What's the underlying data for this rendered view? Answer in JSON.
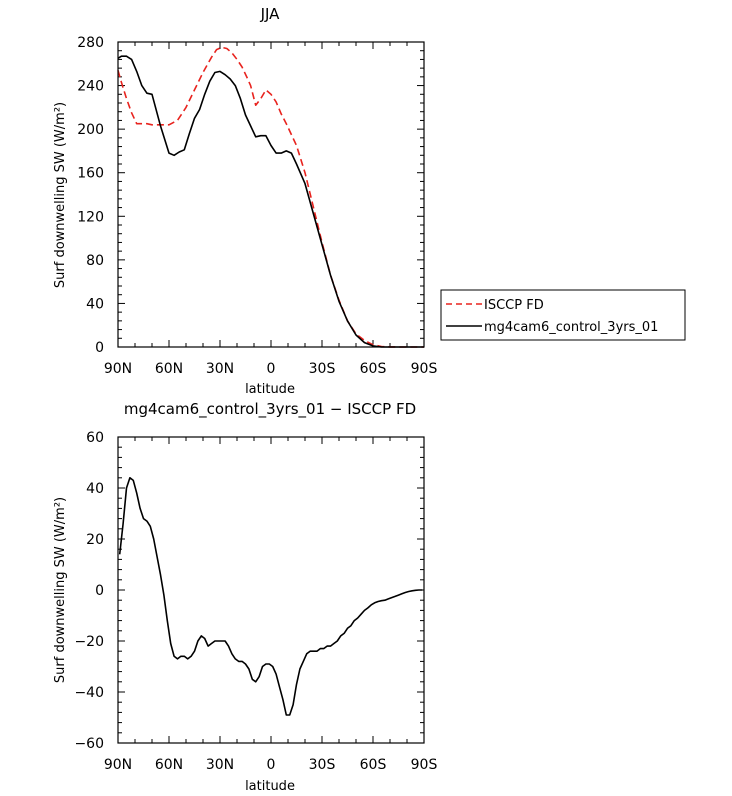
{
  "chart_data": [
    {
      "type": "line",
      "title": "JJA",
      "xlabel": "latitude",
      "ylabel": "Surf downwelling SW (W/m²)",
      "xlim": [
        90,
        -90
      ],
      "ylim": [
        0,
        280
      ],
      "xticks": [
        90,
        60,
        30,
        0,
        -30,
        -60,
        -90
      ],
      "xticklabels": [
        "90N",
        "60N",
        "30N",
        "0",
        "30S",
        "60S",
        "90S"
      ],
      "yticks": [
        0,
        40,
        80,
        120,
        160,
        200,
        240,
        280
      ],
      "yticklabels": [
        "0",
        "40",
        "80",
        "120",
        "160",
        "200",
        "240",
        "280"
      ],
      "legend_position": "right",
      "series": [
        {
          "name": "ISCCP FD",
          "color": "#e8231e",
          "dash": "dashed",
          "x": [
            90,
            88,
            85,
            82,
            79,
            76,
            73,
            70,
            65,
            60,
            55,
            50,
            45,
            40,
            35,
            32,
            29,
            26,
            23,
            20,
            17,
            14,
            12,
            9,
            6,
            3,
            0,
            -3,
            -6,
            -9,
            -12,
            -15,
            -20,
            -25,
            -30,
            -35,
            -40,
            -45,
            -50,
            -55,
            -60,
            -65,
            -70,
            -75,
            -80,
            -85,
            -90
          ],
          "y": [
            254,
            243,
            228,
            215,
            205,
            205,
            205,
            204,
            204,
            204,
            208,
            220,
            236,
            252,
            266,
            273,
            275,
            274,
            270,
            264,
            257,
            247,
            240,
            222,
            228,
            236,
            232,
            225,
            214,
            205,
            195,
            185,
            160,
            128,
            96,
            66,
            43,
            24,
            12,
            6,
            2,
            0.5,
            0.1,
            0,
            0,
            0,
            0
          ]
        },
        {
          "name": "mg4cam6_control_3yrs_01",
          "color": "#000000",
          "dash": "solid",
          "x": [
            90,
            88,
            85,
            82,
            79,
            76,
            73,
            70,
            65,
            60,
            57,
            54,
            51,
            48,
            45,
            42,
            39,
            36,
            33,
            30,
            27,
            24,
            21,
            18,
            15,
            12,
            9,
            6,
            3,
            0,
            -3,
            -6,
            -9,
            -12,
            -15,
            -20,
            -25,
            -30,
            -35,
            -40,
            -45,
            -50,
            -55,
            -60,
            -65,
            -70,
            -75,
            -80,
            -85,
            -90
          ],
          "y": [
            265,
            267,
            267,
            264,
            253,
            240,
            233,
            232,
            203,
            178,
            176,
            179,
            181,
            196,
            210,
            218,
            232,
            244,
            252,
            253,
            250,
            246,
            240,
            228,
            213,
            203,
            193,
            194,
            194,
            185,
            178,
            178,
            180,
            178,
            168,
            150,
            122,
            94,
            66,
            42,
            24,
            11,
            4,
            1,
            0,
            0,
            0,
            0,
            0,
            0
          ]
        }
      ]
    },
    {
      "type": "line",
      "title": "mg4cam6_control_3yrs_01 − ISCCP FD",
      "xlabel": "latitude",
      "ylabel": "Surf downwelling SW (W/m²)",
      "xlim": [
        90,
        -90
      ],
      "ylim": [
        -60,
        60
      ],
      "xticks": [
        90,
        60,
        30,
        0,
        -30,
        -60,
        -90
      ],
      "xticklabels": [
        "90N",
        "60N",
        "30N",
        "0",
        "30S",
        "60S",
        "90S"
      ],
      "yticks": [
        -60,
        -40,
        -20,
        0,
        20,
        40,
        60
      ],
      "yticklabels": [
        "−60",
        "−40",
        "−20",
        "0",
        "20",
        "40",
        "60"
      ],
      "series": [
        {
          "color": "#000000",
          "dash": "solid",
          "x": [
            89,
            87,
            85,
            83,
            81,
            79,
            77,
            75,
            73,
            71,
            69,
            67,
            65,
            63,
            61,
            59,
            57,
            55,
            53,
            51,
            49,
            47,
            45,
            43,
            41,
            39,
            37,
            35,
            33,
            31,
            29,
            27,
            25,
            23,
            21,
            19,
            17,
            15,
            13,
            11,
            9,
            7,
            5,
            3,
            1,
            -1,
            -3,
            -5,
            -7,
            -9,
            -11,
            -13,
            -15,
            -17,
            -19,
            -21,
            -23,
            -25,
            -27,
            -29,
            -31,
            -33,
            -35,
            -37,
            -39,
            -41,
            -43,
            -45,
            -47,
            -49,
            -51,
            -53,
            -55,
            -57,
            -59,
            -61,
            -63,
            -65,
            -67,
            -69,
            -71,
            -73,
            -75,
            -77,
            -79,
            -81,
            -83,
            -85,
            -87,
            -89
          ],
          "y": [
            14,
            26,
            40,
            44,
            43,
            38,
            32,
            28,
            27,
            25,
            20,
            13,
            6,
            -2,
            -12,
            -21,
            -26,
            -27,
            -26,
            -26,
            -27,
            -26,
            -24,
            -20,
            -18,
            -19,
            -22,
            -21,
            -20,
            -20,
            -20,
            -20,
            -22,
            -25,
            -27,
            -28,
            -28,
            -29,
            -31,
            -35,
            -36,
            -34,
            -30,
            -29,
            -29,
            -30,
            -33,
            -38,
            -43,
            -49,
            -49,
            -45,
            -37,
            -31,
            -28,
            -25,
            -24,
            -24,
            -24,
            -23,
            -23,
            -22,
            -22,
            -21,
            -20,
            -18,
            -17,
            -15,
            -14,
            -12,
            -11,
            -9.5,
            -8,
            -7,
            -5.8,
            -5,
            -4.5,
            -4.2,
            -4,
            -3.5,
            -3,
            -2.5,
            -2,
            -1.5,
            -1,
            -0.6,
            -0.3,
            -0.1,
            0,
            0
          ]
        }
      ]
    }
  ]
}
